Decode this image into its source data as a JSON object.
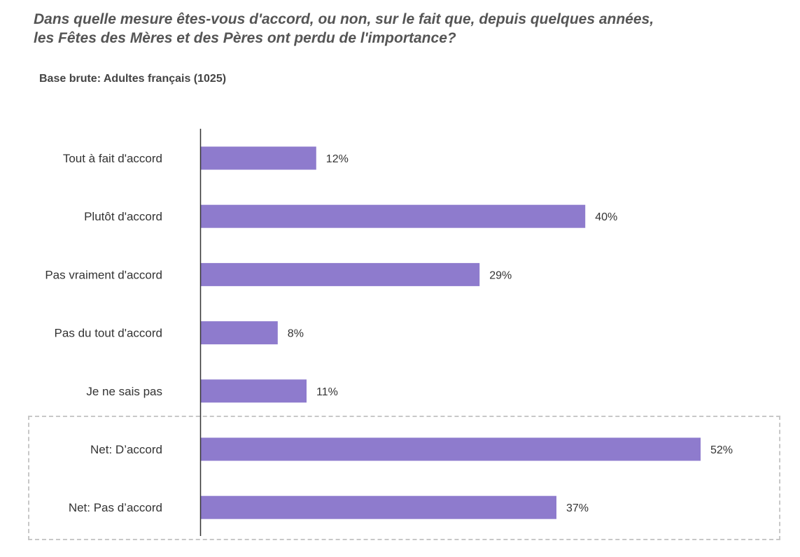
{
  "header": {
    "title_line1": "Dans quelle mesure êtes-vous d'accord, ou non, sur le fait que, depuis quelques années,",
    "title_line2": "les Fêtes des Mères et des Pères ont perdu de l'importance?",
    "base": "Base brute: Adultes français (1025)"
  },
  "colors": {
    "bar": "#8e7bcd",
    "axis": "#333333",
    "net_box_border": "#c8c8c8"
  },
  "chart_data": {
    "type": "bar",
    "orientation": "horizontal",
    "title": "Dans quelle mesure êtes-vous d'accord, ou non, sur le fait que, depuis quelques années, les Fêtes des Mères et des Pères ont perdu de l'importance?",
    "subtitle": "Base brute: Adultes français (1025)",
    "categories": [
      "Tout à fait d'accord",
      "Plutôt d'accord",
      "Pas vraiment d'accord",
      "Pas du tout d'accord",
      "Je ne sais pas",
      "Net: D’accord",
      "Net: Pas d’accord"
    ],
    "values": [
      12,
      40,
      29,
      8,
      11,
      52,
      37
    ],
    "value_labels": [
      "12%",
      "40%",
      "29%",
      "8%",
      "11%",
      "52%",
      "37%"
    ],
    "unit": "%",
    "xlim": [
      0,
      100
    ],
    "grid": false,
    "legend": "none",
    "highlighted_group": [
      "Net: D’accord",
      "Net: Pas d’accord"
    ]
  }
}
